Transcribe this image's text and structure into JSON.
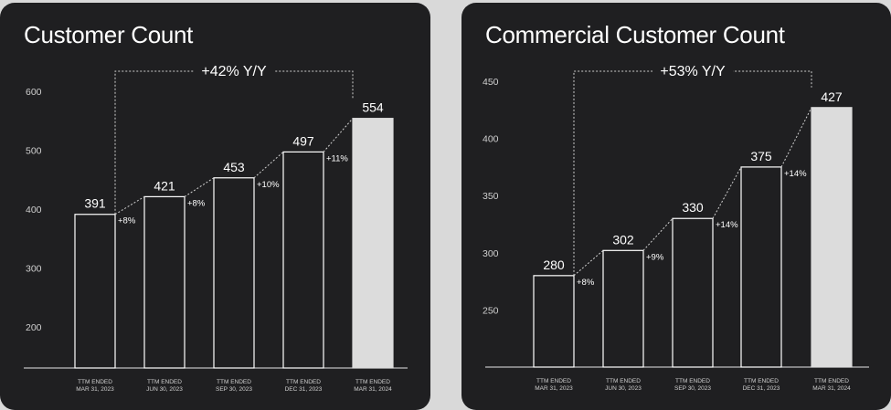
{
  "chart_data": [
    {
      "type": "bar",
      "title": "Customer Count",
      "categories": [
        "TTM ENDED|MAR 31, 2023",
        "TTM ENDED|JUN 30, 2023",
        "TTM ENDED|SEP 30, 2023",
        "TTM ENDED|DEC 31, 2023",
        "TTM ENDED|MAR 31, 2024"
      ],
      "values": [
        391,
        421,
        453,
        497,
        554
      ],
      "growth_labels": [
        "+8%",
        "+8%",
        "+10%",
        "+11%"
      ],
      "yoy_label": "+42% Y/Y",
      "yticks": [
        200,
        300,
        400,
        500,
        600
      ],
      "ylim": [
        130,
        600
      ],
      "grid": false,
      "highlight_last": true,
      "colors": {
        "bar_fill": "#1f1f21",
        "bar_stroke": "#ffffff",
        "highlight_fill": "#dcdcdc",
        "text": "#ffffff",
        "axis_text": "#cfcfcf"
      }
    },
    {
      "type": "bar",
      "title": "Commercial Customer Count",
      "categories": [
        "TTM ENDED|MAR 31, 2023",
        "TTM ENDED|JUN 30, 2023",
        "TTM ENDED|SEP 30, 2023",
        "TTM ENDED|DEC 31, 2023",
        "TTM ENDED|MAR 31, 2024"
      ],
      "values": [
        280,
        302,
        330,
        375,
        427
      ],
      "growth_labels": [
        "+8%",
        "+9%",
        "+14%",
        "+14%"
      ],
      "yoy_label": "+53% Y/Y",
      "yticks": [
        250,
        300,
        350,
        400,
        450
      ],
      "ylim": [
        200,
        450
      ],
      "grid": false,
      "highlight_last": true,
      "colors": {
        "bar_fill": "#1f1f21",
        "bar_stroke": "#ffffff",
        "highlight_fill": "#dcdcdc",
        "text": "#ffffff",
        "axis_text": "#cfcfcf"
      }
    }
  ]
}
